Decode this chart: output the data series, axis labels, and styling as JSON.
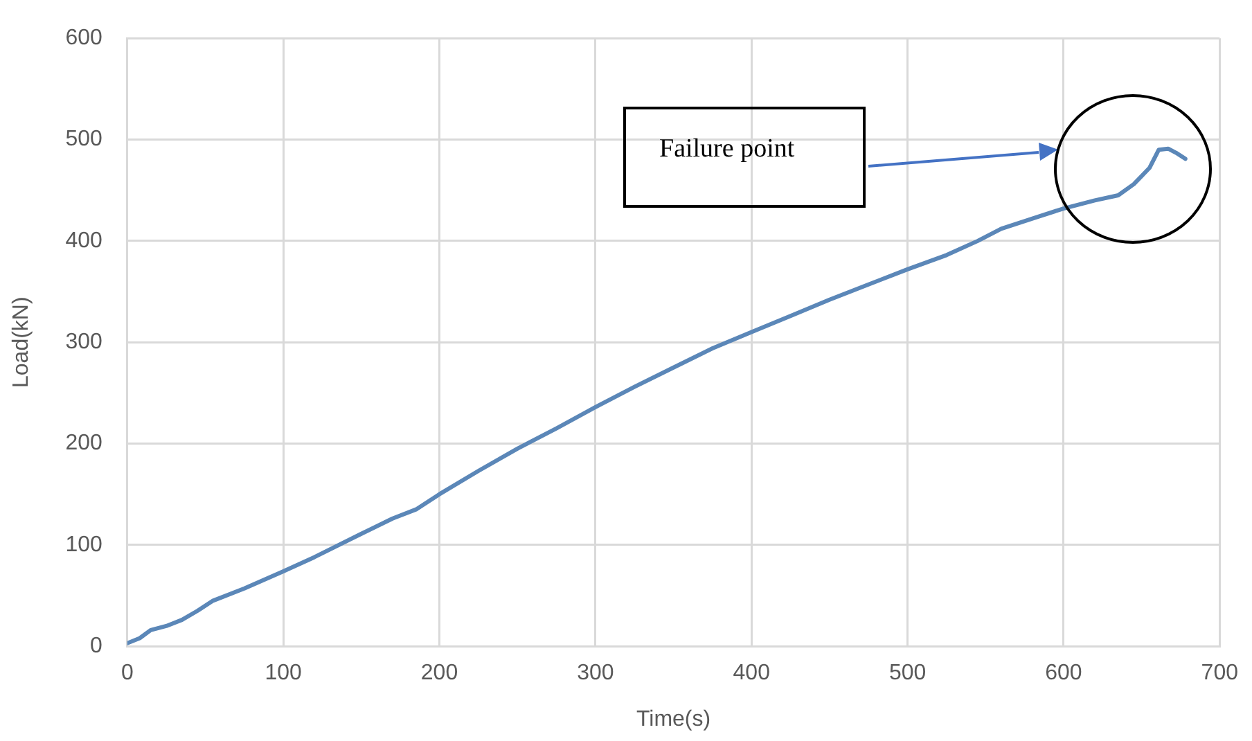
{
  "chart_data": {
    "type": "line",
    "xlabel": "Time(s)",
    "ylabel": "Load(kN)",
    "annotations": [
      "Failure point"
    ],
    "series": [
      {
        "color": "#5b87b8",
        "x": [
          0,
          8,
          15,
          25,
          35,
          45,
          55,
          75,
          100,
          120,
          150,
          170,
          185,
          200,
          225,
          250,
          275,
          300,
          325,
          350,
          375,
          400,
          425,
          450,
          475,
          500,
          525,
          545,
          560,
          580,
          600,
          620,
          635,
          645,
          655,
          661,
          667,
          672,
          678
        ],
        "values": [
          3,
          8,
          16,
          20,
          26,
          35,
          45,
          57,
          74,
          88,
          111,
          126,
          135,
          150,
          173,
          195,
          215,
          236,
          256,
          275,
          294,
          310,
          326,
          342,
          357,
          372,
          386,
          400,
          412,
          422,
          432,
          440,
          445,
          456,
          472,
          490,
          491,
          487,
          481
        ]
      }
    ],
    "xlim": [
      0,
      700
    ],
    "xticks": [
      0,
      100,
      200,
      300,
      400,
      500,
      600,
      700
    ],
    "ylim": [
      0,
      600
    ],
    "yticks": [
      0,
      100,
      200,
      300,
      400,
      500,
      600
    ],
    "grid": true,
    "legend": false,
    "marker": "none",
    "line_style": "solid"
  }
}
